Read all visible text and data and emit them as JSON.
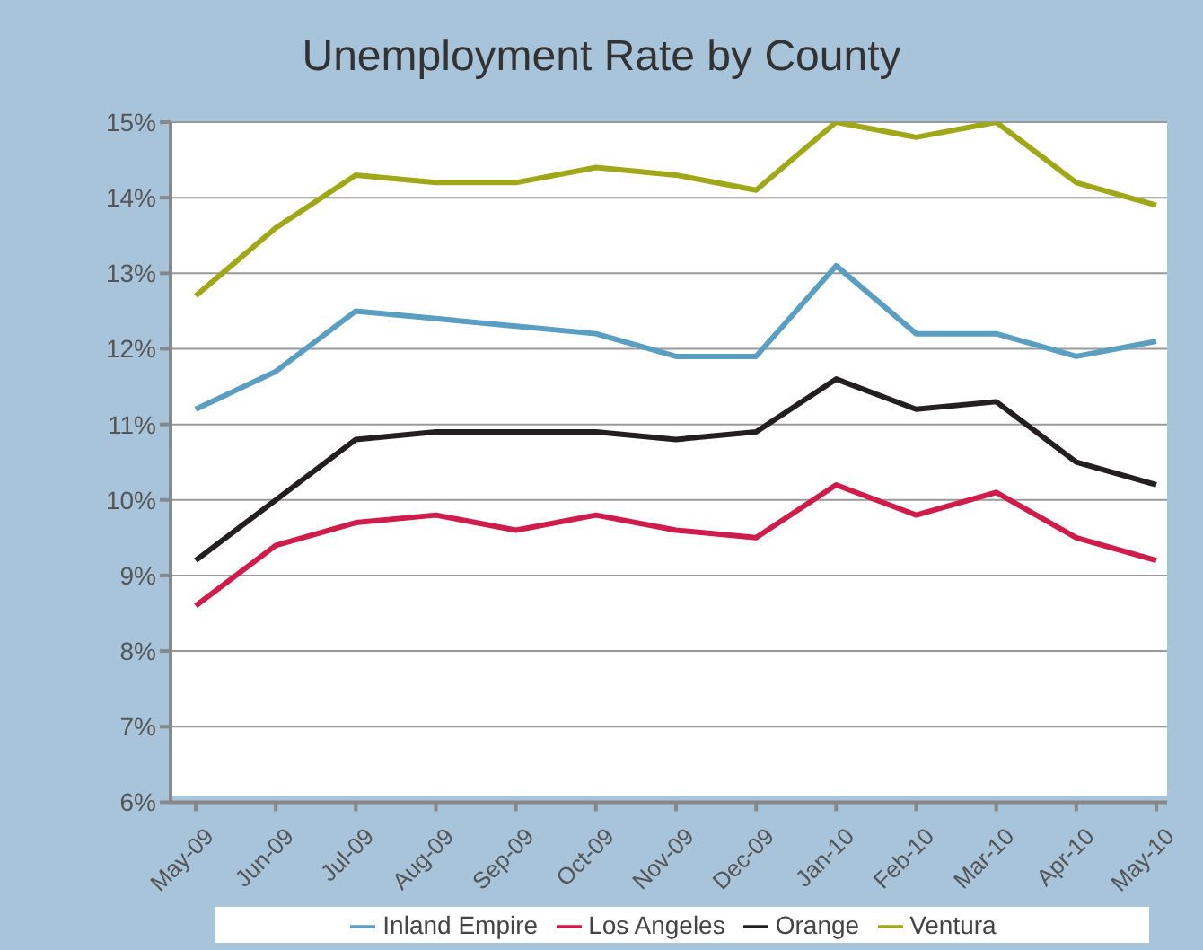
{
  "chart_data": {
    "type": "line",
    "title": "Unemployment Rate by County",
    "categories": [
      "May-09",
      "Jun-09",
      "Jul-09",
      "Aug-09",
      "Sep-09",
      "Oct-09",
      "Nov-09",
      "Dec-09",
      "Jan-10",
      "Feb-10",
      "Mar-10",
      "Apr-10",
      "May-10"
    ],
    "series": [
      {
        "name": "Los Angeles",
        "color": "#d01c4b",
        "values": [
          8.6,
          9.4,
          9.7,
          9.8,
          9.6,
          9.8,
          9.6,
          9.5,
          10.2,
          9.8,
          10.1,
          9.5,
          9.2
        ]
      },
      {
        "name": "Orange",
        "color": "#231f20",
        "values": [
          9.2,
          10.0,
          10.8,
          10.9,
          10.9,
          10.9,
          10.8,
          10.9,
          11.6,
          11.2,
          11.3,
          10.5,
          10.2
        ]
      },
      {
        "name": "Inland Empire",
        "color": "#5a9ec2",
        "values": [
          11.2,
          11.7,
          12.5,
          12.4,
          12.3,
          12.2,
          11.9,
          11.9,
          13.1,
          12.2,
          12.2,
          11.9,
          12.1
        ]
      },
      {
        "name": "Ventura",
        "color": "#a0a81a",
        "values": [
          12.7,
          13.6,
          14.3,
          14.2,
          14.2,
          14.4,
          14.3,
          14.1,
          15.0,
          14.8,
          15.0,
          14.2,
          13.9
        ]
      }
    ],
    "ylim": [
      6,
      15
    ],
    "yticks": [
      {
        "value": 6,
        "label": "6%"
      },
      {
        "value": 7,
        "label": "7%"
      },
      {
        "value": 8,
        "label": "8%"
      },
      {
        "value": 9,
        "label": "9%"
      },
      {
        "value": 10,
        "label": "10%"
      },
      {
        "value": 11,
        "label": "11%"
      },
      {
        "value": 12,
        "label": "12%"
      },
      {
        "value": 13,
        "label": "13%"
      },
      {
        "value": 14,
        "label": "14%"
      },
      {
        "value": 15,
        "label": "15%"
      }
    ],
    "grid": "y",
    "legend": "bottom",
    "marker": "none",
    "line_style": "solid"
  }
}
